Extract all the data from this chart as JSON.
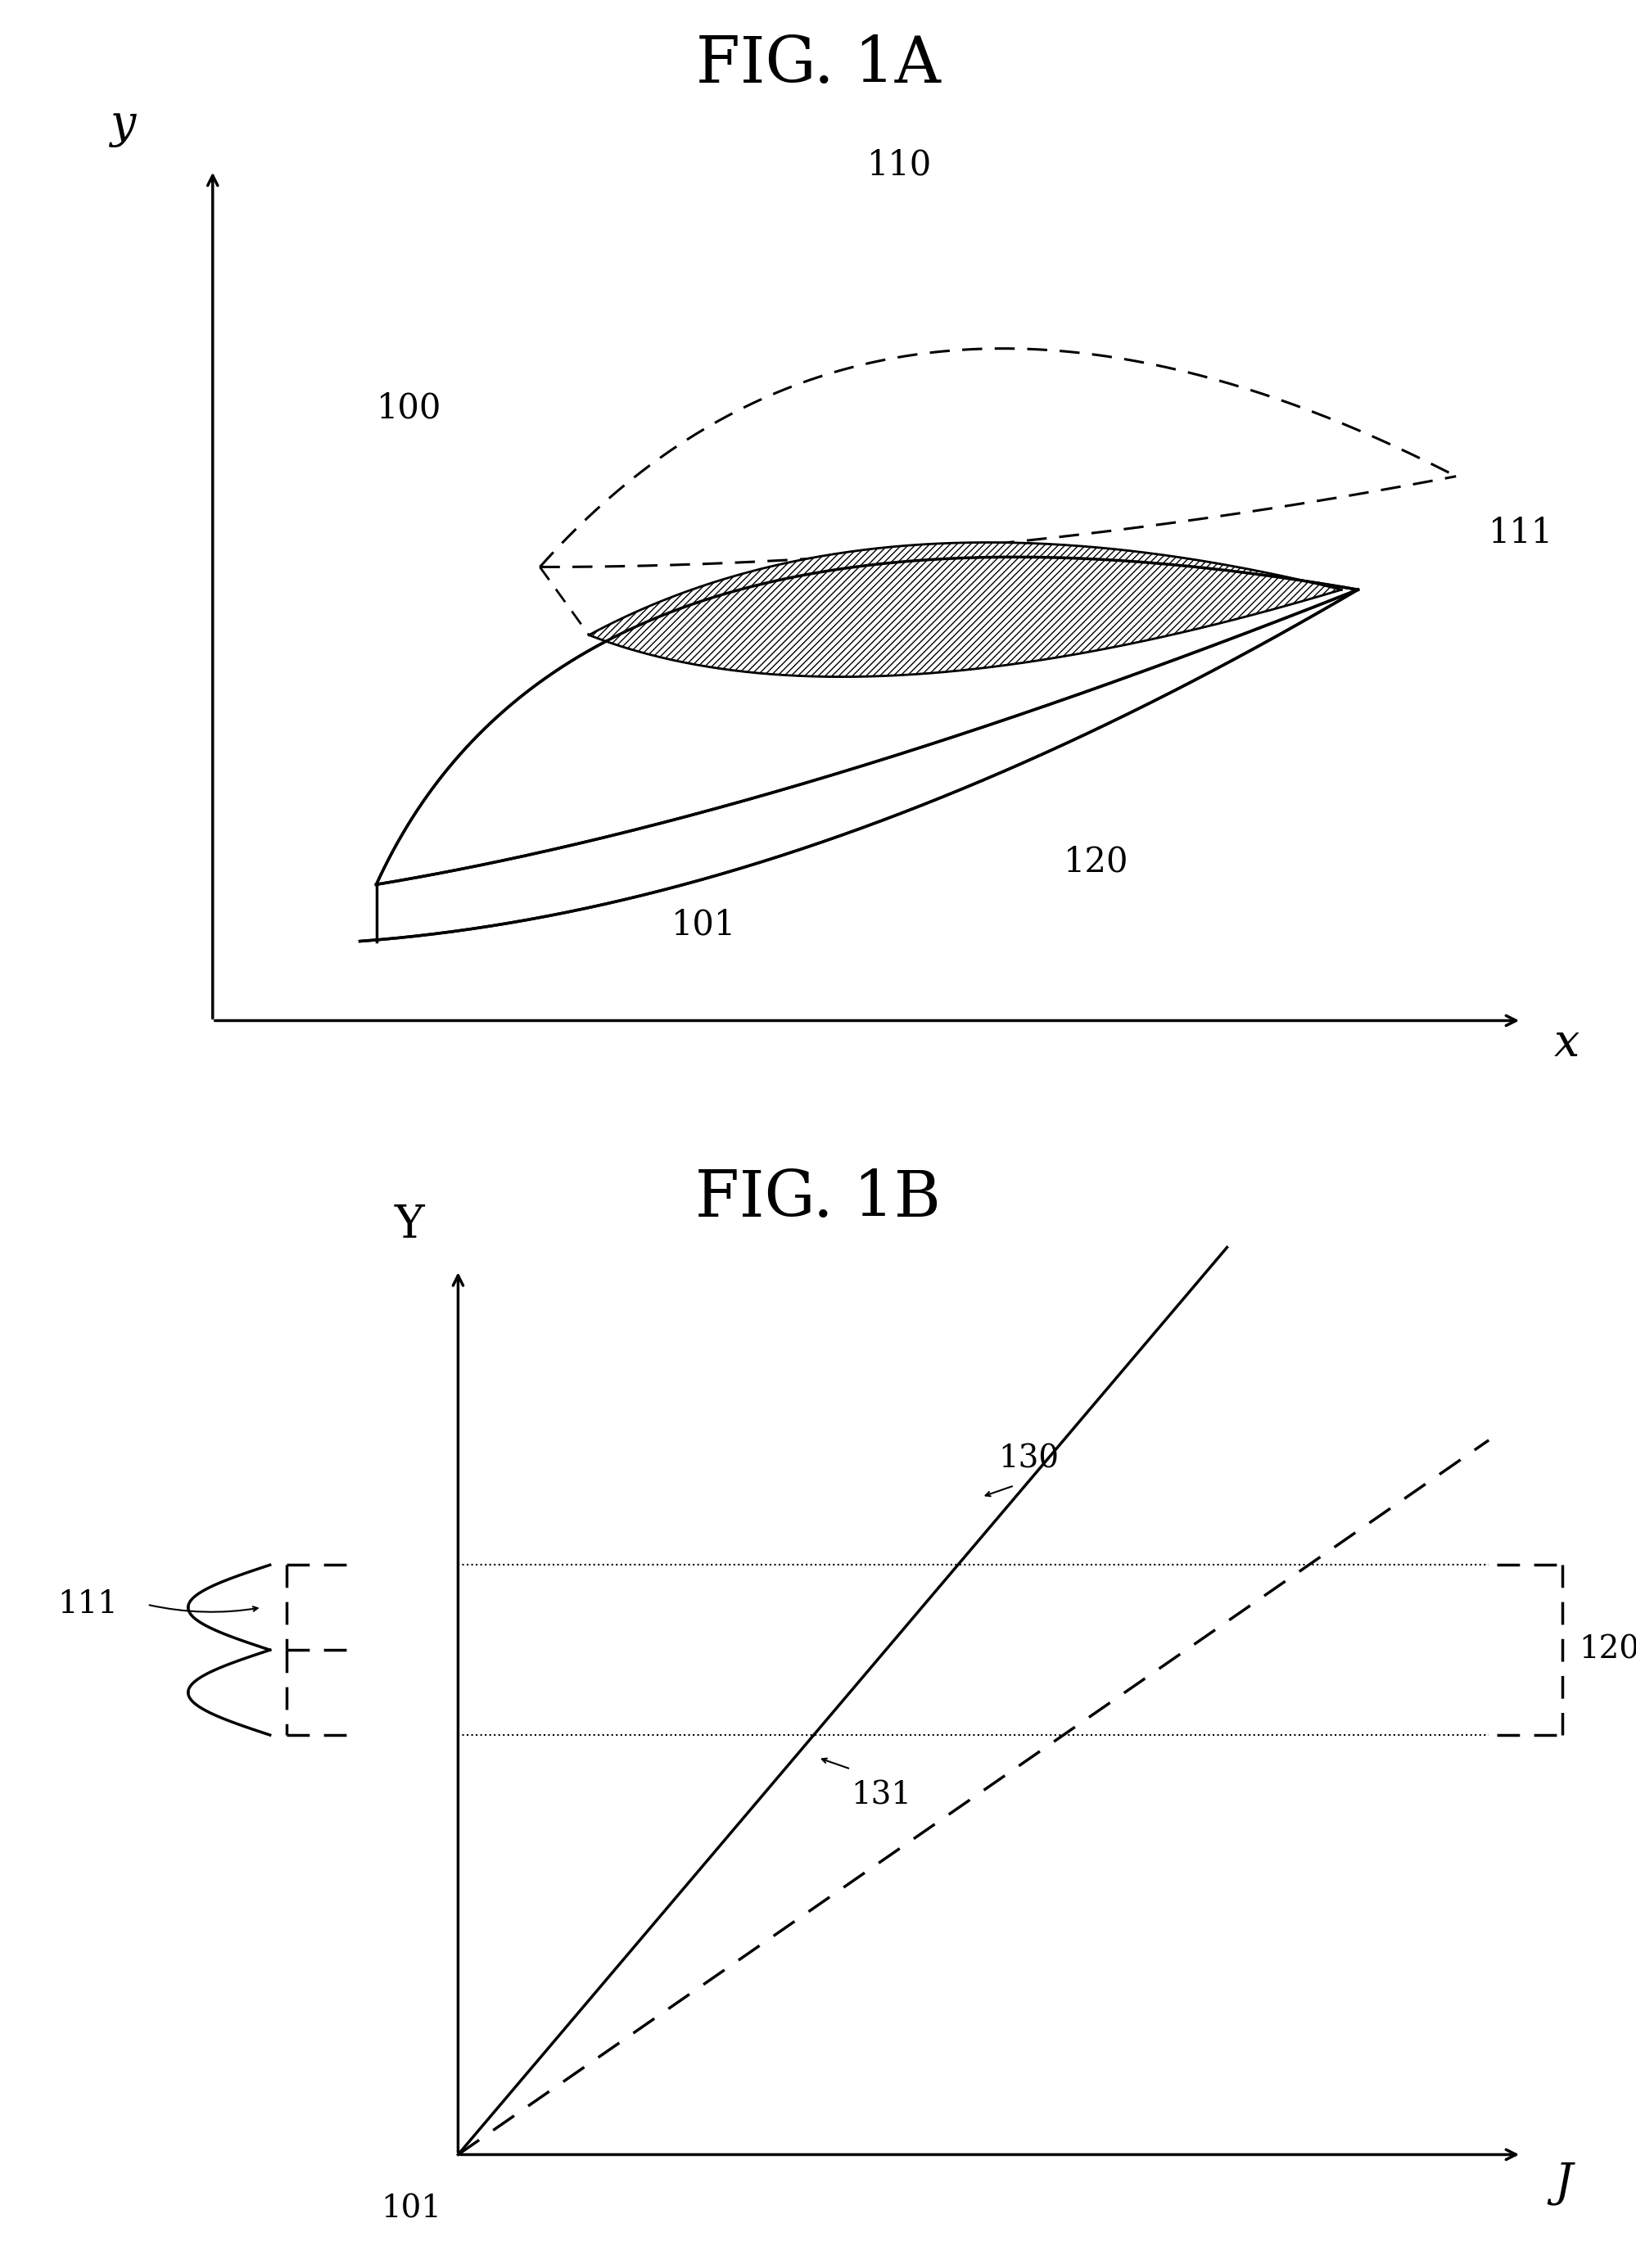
{
  "fig1a_title": "FIG. 1A",
  "fig1b_title": "FIG. 1B",
  "bg_color": "#ffffff",
  "line_color": "#000000",
  "label_100": "100",
  "label_101": "101",
  "label_110": "110",
  "label_111": "111",
  "label_120": "120",
  "label_130": "130",
  "label_131": "131",
  "axis_x_label": "x",
  "axis_y_label": "y",
  "axis_Y_label": "Y",
  "axis_J_label": "J",
  "fig1a_ox": 0.13,
  "fig1a_oy": 0.1,
  "fig1b_ox": 0.28,
  "fig1b_oy": 0.1
}
